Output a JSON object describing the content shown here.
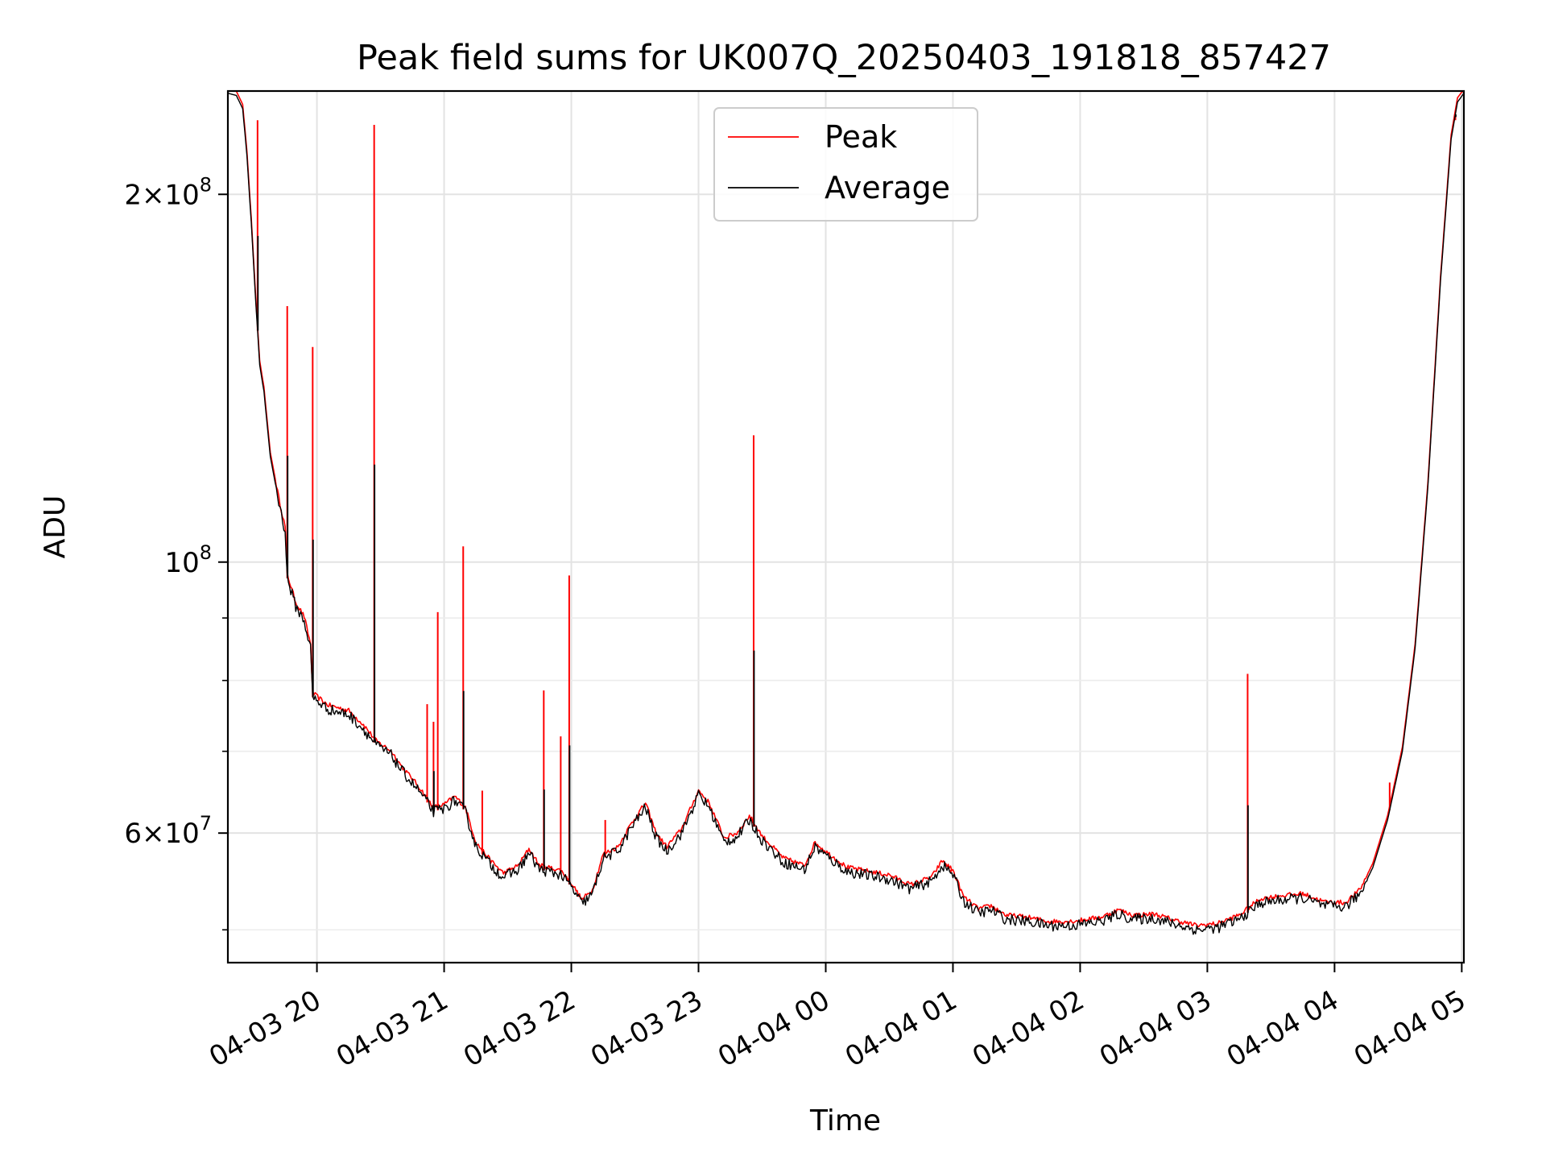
{
  "chart_data": {
    "type": "line",
    "title": "Peak field sums for UK007Q_20250403_191818_857427",
    "xlabel": "Time",
    "ylabel": "ADU",
    "yscale": "log",
    "xlim": [
      "2025-04-03 19:18",
      "2025-04-04 05:01"
    ],
    "ylim": [
      47000000,
      243000000
    ],
    "grid": true,
    "legend": {
      "placement": "top-center",
      "entries": [
        "Peak",
        "Average"
      ]
    },
    "colors": {
      "Peak": "#ff0000",
      "Average": "#000000"
    },
    "x_ticks": [
      {
        "t": "2025-04-03 20:00",
        "label": "04-03 20"
      },
      {
        "t": "2025-04-03 21:00",
        "label": "04-03 21"
      },
      {
        "t": "2025-04-03 22:00",
        "label": "04-03 22"
      },
      {
        "t": "2025-04-03 23:00",
        "label": "04-03 23"
      },
      {
        "t": "2025-04-04 00:00",
        "label": "04-04 00"
      },
      {
        "t": "2025-04-04 01:00",
        "label": "04-04 01"
      },
      {
        "t": "2025-04-04 02:00",
        "label": "04-04 02"
      },
      {
        "t": "2025-04-04 03:00",
        "label": "04-04 03"
      },
      {
        "t": "2025-04-04 04:00",
        "label": "04-04 04"
      },
      {
        "t": "2025-04-04 05:00",
        "label": "04-04 05"
      }
    ],
    "y_major_ticks": [
      {
        "value": 60000000,
        "base": "6",
        "exp": "7"
      },
      {
        "value": 100000000,
        "base": "",
        "exp": "8"
      },
      {
        "value": 200000000,
        "base": "2",
        "exp": "8"
      }
    ],
    "y_minor_ticks": [
      50000000,
      70000000,
      80000000,
      90000000
    ],
    "series": [
      {
        "name": "Average",
        "points": [
          [
            "2025-04-03 19:18",
            242000000
          ],
          [
            "2025-04-03 19:22",
            241000000
          ],
          [
            "2025-04-03 19:25",
            235000000
          ],
          [
            "2025-04-03 19:27",
            215000000
          ],
          [
            "2025-04-03 19:29",
            190000000
          ],
          [
            "2025-04-03 19:31",
            165000000
          ],
          [
            "2025-04-03 19:33",
            145000000
          ],
          [
            "2025-04-03 19:35",
            138000000
          ],
          [
            "2025-04-03 19:38",
            122000000
          ],
          [
            "2025-04-03 19:42",
            112000000
          ],
          [
            "2025-04-03 19:45",
            106000000
          ],
          [
            "2025-04-03 19:46",
            97000000
          ],
          [
            "2025-04-03 19:50",
            92000000
          ],
          [
            "2025-04-03 19:54",
            89500000
          ],
          [
            "2025-04-03 19:57",
            85000000
          ],
          [
            "2025-04-03 19:58",
            77500000
          ],
          [
            "2025-04-03 20:05",
            75800000
          ],
          [
            "2025-04-03 20:15",
            75000000
          ],
          [
            "2025-04-03 20:22",
            73000000
          ],
          [
            "2025-04-03 20:28",
            70800000
          ],
          [
            "2025-04-03 20:35",
            69500000
          ],
          [
            "2025-04-03 20:40",
            67500000
          ],
          [
            "2025-04-03 20:48",
            65000000
          ],
          [
            "2025-04-03 20:55",
            62500000
          ],
          [
            "2025-04-03 21:00",
            62800000
          ],
          [
            "2025-04-03 21:05",
            63800000
          ],
          [
            "2025-04-03 21:10",
            62500000
          ],
          [
            "2025-04-03 21:15",
            58500000
          ],
          [
            "2025-04-03 21:22",
            56500000
          ],
          [
            "2025-04-03 21:28",
            55200000
          ],
          [
            "2025-04-03 21:35",
            56000000
          ],
          [
            "2025-04-03 21:40",
            57800000
          ],
          [
            "2025-04-03 21:45",
            56000000
          ],
          [
            "2025-04-03 21:55",
            55500000
          ],
          [
            "2025-04-03 22:00",
            54200000
          ],
          [
            "2025-04-03 22:05",
            52500000
          ],
          [
            "2025-04-03 22:10",
            53500000
          ],
          [
            "2025-04-03 22:15",
            57200000
          ],
          [
            "2025-04-03 22:22",
            58000000
          ],
          [
            "2025-04-03 22:28",
            60500000
          ],
          [
            "2025-04-03 22:35",
            63000000
          ],
          [
            "2025-04-03 22:40",
            59500000
          ],
          [
            "2025-04-03 22:45",
            58000000
          ],
          [
            "2025-04-03 22:52",
            60000000
          ],
          [
            "2025-04-03 23:00",
            64500000
          ],
          [
            "2025-04-03 23:05",
            63000000
          ],
          [
            "2025-04-03 23:12",
            59000000
          ],
          [
            "2025-04-03 23:18",
            59500000
          ],
          [
            "2025-04-03 23:24",
            61500000
          ],
          [
            "2025-04-03 23:30",
            59200000
          ],
          [
            "2025-04-03 23:40",
            56800000
          ],
          [
            "2025-04-03 23:50",
            56000000
          ],
          [
            "2025-04-03 23:55",
            58500000
          ],
          [
            "2025-04-04 00:00",
            57500000
          ],
          [
            "2025-04-04 00:10",
            55800000
          ],
          [
            "2025-04-04 00:20",
            55400000
          ],
          [
            "2025-04-04 00:30",
            55000000
          ],
          [
            "2025-04-04 00:40",
            54000000
          ],
          [
            "2025-04-04 00:50",
            54800000
          ],
          [
            "2025-04-04 00:55",
            56500000
          ],
          [
            "2025-04-04 01:00",
            55500000
          ],
          [
            "2025-04-04 01:05",
            52800000
          ],
          [
            "2025-04-04 01:12",
            51600000
          ],
          [
            "2025-04-04 01:18",
            51900000
          ],
          [
            "2025-04-04 01:25",
            51000000
          ],
          [
            "2025-04-04 01:35",
            50800000
          ],
          [
            "2025-04-04 01:45",
            50400000
          ],
          [
            "2025-04-04 01:55",
            50400000
          ],
          [
            "2025-04-04 02:00",
            50500000
          ],
          [
            "2025-04-04 02:10",
            50800000
          ],
          [
            "2025-04-04 02:18",
            51500000
          ],
          [
            "2025-04-04 02:25",
            51000000
          ],
          [
            "2025-04-04 02:35",
            51100000
          ],
          [
            "2025-04-04 02:45",
            50500000
          ],
          [
            "2025-04-04 02:55",
            50000000
          ],
          [
            "2025-04-04 03:05",
            50200000
          ],
          [
            "2025-04-04 03:15",
            51000000
          ],
          [
            "2025-04-04 03:25",
            52600000
          ],
          [
            "2025-04-04 03:35",
            52900000
          ],
          [
            "2025-04-04 03:45",
            53100000
          ],
          [
            "2025-04-04 03:55",
            52300000
          ],
          [
            "2025-04-04 04:05",
            52200000
          ],
          [
            "2025-04-04 04:12",
            53500000
          ],
          [
            "2025-04-04 04:18",
            56200000
          ],
          [
            "2025-04-04 04:25",
            61500000
          ],
          [
            "2025-04-04 04:32",
            70000000
          ],
          [
            "2025-04-04 04:38",
            85000000
          ],
          [
            "2025-04-04 04:44",
            115000000
          ],
          [
            "2025-04-04 04:50",
            170000000
          ],
          [
            "2025-04-04 04:55",
            222000000
          ],
          [
            "2025-04-04 04:58",
            238000000
          ],
          [
            "2025-04-04 05:01",
            242000000
          ]
        ]
      },
      {
        "name": "Peak",
        "spikes": [
          [
            "2025-04-03 19:32",
            230000000
          ],
          [
            "2025-04-03 19:46",
            162000000
          ],
          [
            "2025-04-03 19:58",
            150000000
          ],
          [
            "2025-04-03 20:27",
            228000000
          ],
          [
            "2025-04-03 20:52",
            76500000
          ],
          [
            "2025-04-03 20:55",
            74000000
          ],
          [
            "2025-04-03 20:57",
            91000000
          ],
          [
            "2025-04-03 21:09",
            103000000
          ],
          [
            "2025-04-03 21:18",
            65000000
          ],
          [
            "2025-04-03 21:47",
            78500000
          ],
          [
            "2025-04-03 21:55",
            72000000
          ],
          [
            "2025-04-03 21:59",
            97500000
          ],
          [
            "2025-04-03 22:16",
            61500000
          ],
          [
            "2025-04-03 23:26",
            127000000
          ],
          [
            "2025-04-04 00:59",
            56000000
          ],
          [
            "2025-04-04 03:19",
            81000000
          ],
          [
            "2025-04-04 04:26",
            66000000
          ],
          [
            "2025-04-04 04:57",
            230000000
          ]
        ]
      }
    ]
  }
}
